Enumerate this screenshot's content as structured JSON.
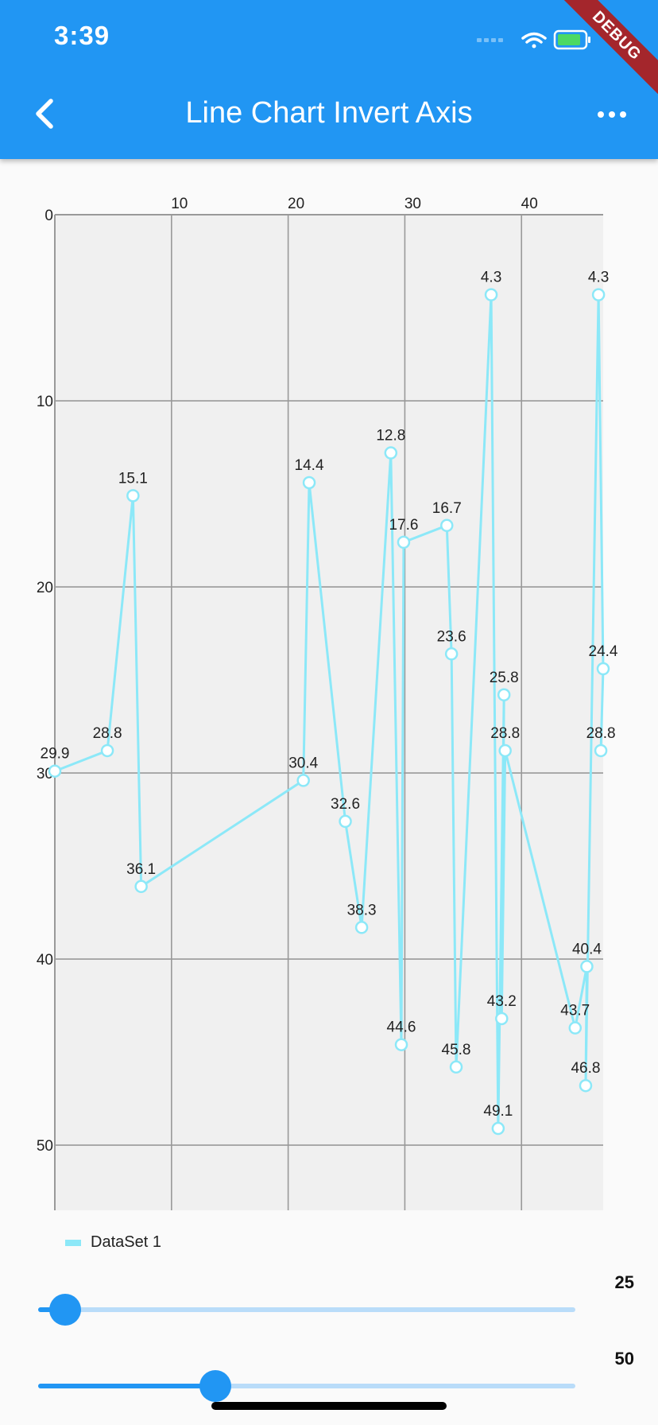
{
  "status_bar": {
    "time": "3:39",
    "debug_label": "DEBUG"
  },
  "app_bar": {
    "title": "Line Chart Invert Axis"
  },
  "icons": [
    "chevron-left-icon",
    "more-horizontal-icon",
    "wifi-icon",
    "battery-icon",
    "signal-icon"
  ],
  "colors": {
    "primary": "#2196F3",
    "line": "#8CE8F8",
    "plot_background": "#F0F0F0",
    "grid": "#999999"
  },
  "chart_data": {
    "type": "line",
    "title": "",
    "x_axis_position": "top",
    "y_inverted": true,
    "xlim": [
      0,
      47
    ],
    "ylim": [
      0,
      53.5
    ],
    "x_ticks": [
      10,
      20,
      30,
      40
    ],
    "y_ticks": [
      0,
      10,
      20,
      30,
      40,
      50
    ],
    "grid": true,
    "legend": "bottom-left",
    "series": [
      {
        "name": "DataSet 1",
        "points": [
          {
            "x": 0.0,
            "y": 29.9
          },
          {
            "x": 4.5,
            "y": 28.8
          },
          {
            "x": 6.7,
            "y": 15.1
          },
          {
            "x": 7.4,
            "y": 36.1
          },
          {
            "x": 21.3,
            "y": 30.4
          },
          {
            "x": 21.8,
            "y": 14.4
          },
          {
            "x": 24.9,
            "y": 32.6
          },
          {
            "x": 26.3,
            "y": 38.3
          },
          {
            "x": 28.8,
            "y": 12.8
          },
          {
            "x": 29.7,
            "y": 44.6
          },
          {
            "x": 29.9,
            "y": 17.6
          },
          {
            "x": 33.6,
            "y": 16.7
          },
          {
            "x": 34.0,
            "y": 23.6
          },
          {
            "x": 34.4,
            "y": 45.8
          },
          {
            "x": 37.4,
            "y": 4.3
          },
          {
            "x": 38.0,
            "y": 49.1
          },
          {
            "x": 38.5,
            "y": 25.8
          },
          {
            "x": 38.3,
            "y": 43.2
          },
          {
            "x": 38.6,
            "y": 28.8
          },
          {
            "x": 44.6,
            "y": 43.7
          },
          {
            "x": 45.6,
            "y": 40.4
          },
          {
            "x": 45.5,
            "y": 46.8
          },
          {
            "x": 46.6,
            "y": 4.3
          },
          {
            "x": 47.0,
            "y": 24.4
          },
          {
            "x": 46.8,
            "y": 28.8
          }
        ]
      }
    ]
  },
  "legend": {
    "label": "DataSet 1"
  },
  "sliders": [
    {
      "value": 25,
      "label": "25",
      "fraction": 0.05
    },
    {
      "value": 50,
      "label": "50",
      "fraction": 0.33
    }
  ]
}
